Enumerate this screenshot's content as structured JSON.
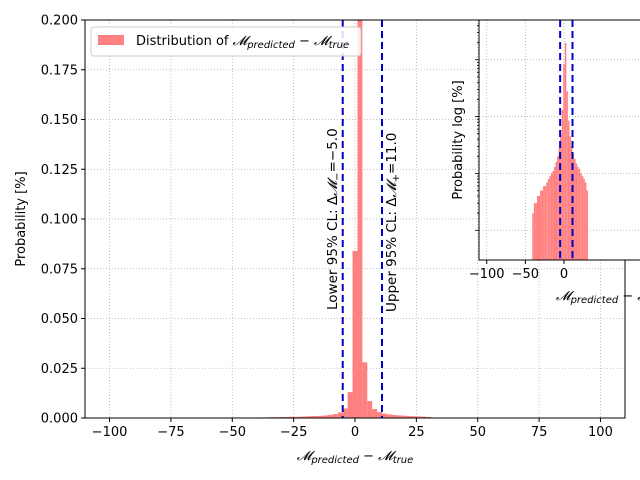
{
  "chart_data": [
    {
      "type": "histogram",
      "panel": "main",
      "xlabel": "𝓜predicted − 𝓜true",
      "ylabel": "Probability [%]",
      "xlim": [
        -110,
        110
      ],
      "ylim": [
        0,
        0.2
      ],
      "x_ticks": [
        -100,
        -75,
        -50,
        -25,
        0,
        25,
        50,
        75,
        100
      ],
      "x_tick_labels": [
        "−100",
        "−75",
        "−50",
        "−25",
        "0",
        "25",
        "50",
        "75",
        "100"
      ],
      "y_ticks": [
        0,
        0.025,
        0.05,
        0.075,
        0.1,
        0.125,
        0.15,
        0.175,
        0.2
      ],
      "y_tick_labels": [
        "0.000",
        "0.025",
        "0.050",
        "0.075",
        "0.100",
        "0.125",
        "0.150",
        "0.175",
        "0.200"
      ],
      "grid": true,
      "legend": {
        "position": "top-left",
        "entries": [
          {
            "label": "Distribution of 𝓜predicted − 𝓜true",
            "color": "#ff8080"
          }
        ]
      },
      "bin_width": 2,
      "bins": [
        {
          "x": -40,
          "value": 0.0002
        },
        {
          "x": -38,
          "value": 0.0003
        },
        {
          "x": -36,
          "value": 0.0003
        },
        {
          "x": -34,
          "value": 0.0004
        },
        {
          "x": -32,
          "value": 0.0004
        },
        {
          "x": -30,
          "value": 0.0005
        },
        {
          "x": -28,
          "value": 0.0005
        },
        {
          "x": -26,
          "value": 0.0006
        },
        {
          "x": -24,
          "value": 0.0006
        },
        {
          "x": -22,
          "value": 0.0007
        },
        {
          "x": -20,
          "value": 0.0008
        },
        {
          "x": -18,
          "value": 0.0009
        },
        {
          "x": -16,
          "value": 0.001
        },
        {
          "x": -14,
          "value": 0.0011
        },
        {
          "x": -12,
          "value": 0.0013
        },
        {
          "x": -10,
          "value": 0.0016
        },
        {
          "x": -8,
          "value": 0.002
        },
        {
          "x": -6,
          "value": 0.0028
        },
        {
          "x": -4,
          "value": 0.0048
        },
        {
          "x": -2,
          "value": 0.013
        },
        {
          "x": 0,
          "value": 0.084
        },
        {
          "x": 2,
          "value": 0.2
        },
        {
          "x": 4,
          "value": 0.028
        },
        {
          "x": 6,
          "value": 0.0085
        },
        {
          "x": 8,
          "value": 0.0045
        },
        {
          "x": 10,
          "value": 0.003
        },
        {
          "x": 12,
          "value": 0.0022
        },
        {
          "x": 14,
          "value": 0.0018
        },
        {
          "x": 16,
          "value": 0.0015
        },
        {
          "x": 18,
          "value": 0.0013
        },
        {
          "x": 20,
          "value": 0.0012
        },
        {
          "x": 22,
          "value": 0.001
        },
        {
          "x": 24,
          "value": 0.0009
        },
        {
          "x": 26,
          "value": 0.0008
        },
        {
          "x": 28,
          "value": 0.0007
        },
        {
          "x": 30,
          "value": 0.0005
        }
      ],
      "bar_color": "#ff8080",
      "vlines": [
        {
          "x": -5.0,
          "label": "Lower 95% CL: Δ𝓜−=−5.0",
          "color": "#0000cc",
          "style": "dashed"
        },
        {
          "x": 11.0,
          "label": "Upper 95% CL: Δ𝓜+=11.0",
          "color": "#0000cc",
          "style": "dashed"
        }
      ]
    },
    {
      "type": "histogram",
      "panel": "inset",
      "xlabel": "𝓜predicted − 𝓜true",
      "ylabel": "Probability log [%]",
      "yscale": "log",
      "xlim": [
        -110,
        110
      ],
      "ylim": [
        3e-05,
        0.5
      ],
      "x_ticks": [
        -100,
        -50,
        0
      ],
      "x_tick_labels": [
        "−100",
        "−50",
        "0"
      ],
      "grid": true,
      "bar_color": "#ff8080",
      "vlines": [
        {
          "x": -5.0,
          "color": "#0000cc",
          "style": "dashed"
        },
        {
          "x": 11.0,
          "color": "#0000cc",
          "style": "dashed"
        }
      ]
    }
  ]
}
